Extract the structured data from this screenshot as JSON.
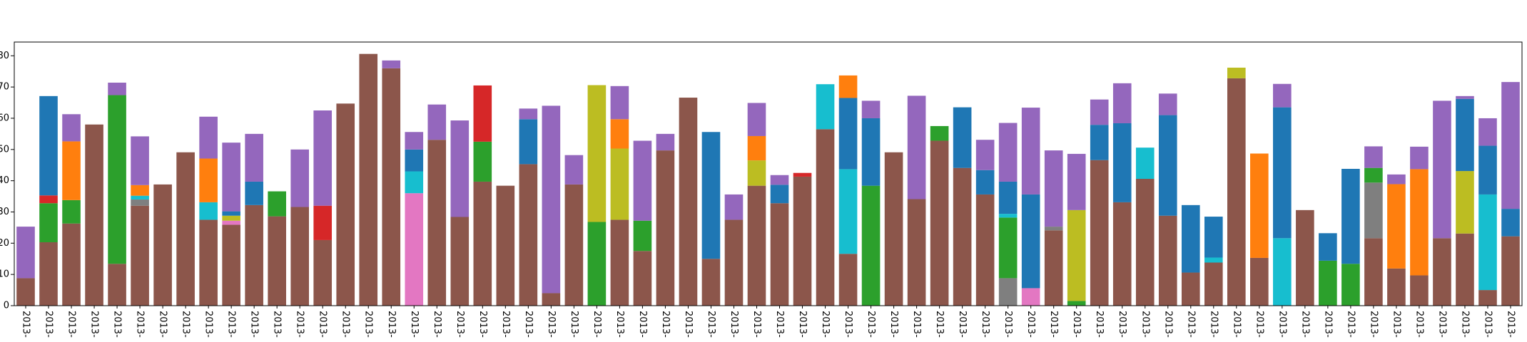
{
  "chart_data": {
    "type": "stacked-bar",
    "categories": [
      "2013-",
      "2013-",
      "2013-",
      "2013-",
      "2013-",
      "2013-",
      "2013-",
      "2013-",
      "2013-",
      "2013-",
      "2013-",
      "2013-",
      "2013-",
      "2013-",
      "2013-",
      "2013-",
      "2013-",
      "2013-",
      "2013-",
      "2013-",
      "2013-",
      "2013-",
      "2013-",
      "2013-",
      "2013-",
      "2013-",
      "2013-",
      "2013-",
      "2013-",
      "2013-",
      "2013-",
      "2013-",
      "2013-",
      "2013-",
      "2013-",
      "2013-",
      "2013-",
      "2013-",
      "2013-",
      "2013-",
      "2013-",
      "2013-",
      "2013-",
      "2013-",
      "2013-",
      "2013-",
      "2013-",
      "2013-",
      "2013-",
      "2013-",
      "2013-",
      "2013-",
      "2013-",
      "2013-",
      "2013-",
      "2013-",
      "2013-",
      "2013-",
      "2013-",
      "2013-",
      "2013-",
      "2013-",
      "2013-",
      "2013-",
      "2013-",
      "2013-"
    ],
    "ylim": [
      0,
      84.4
    ],
    "yticks": [
      0,
      10,
      20,
      30,
      40,
      50,
      60,
      70,
      80
    ],
    "series": [
      {
        "color": "#8c564b",
        "values": [
          8.8,
          20.3,
          26.3,
          58,
          13.4,
          32,
          38.8,
          49.1,
          27.5,
          25.9,
          32.2,
          28.6,
          31.6,
          21,
          64.7,
          80.6,
          76,
          0,
          53.1,
          28.4,
          39.7,
          38.4,
          45.3,
          4,
          38.8,
          0,
          27.5,
          17.5,
          49.7,
          66.6,
          15,
          27.5,
          38.4,
          32.8,
          41.3,
          56.5,
          16.6,
          0,
          49.1,
          34.1,
          52.8,
          44.1,
          35.6,
          0,
          0,
          24.1,
          0,
          46.6,
          33.1,
          40.6,
          28.8,
          10.6,
          13.8,
          72.8,
          15.3,
          0,
          30.6,
          0,
          0,
          21.6,
          11.9,
          9.7,
          21.6,
          23.1,
          5,
          22.2
        ]
      },
      {
        "color": "#7f7f7f",
        "values": [
          0,
          0,
          0,
          0,
          0,
          2,
          0,
          0,
          0,
          0,
          0,
          0,
          0,
          0,
          0,
          0,
          0,
          0,
          0,
          0,
          0,
          0,
          0,
          0,
          0,
          0,
          0,
          0,
          0,
          0,
          0,
          0,
          0,
          0,
          0,
          0,
          0,
          0,
          0,
          0,
          0,
          0,
          0,
          8.8,
          0,
          1.2,
          0,
          0,
          0,
          0,
          0,
          0,
          0,
          0,
          0,
          0,
          0,
          0,
          0,
          17.8,
          0,
          0,
          0,
          0,
          0,
          0
        ]
      },
      {
        "color": "#e377c2",
        "values": [
          0,
          0,
          0,
          0,
          0,
          0,
          0,
          0,
          0,
          1.3,
          0,
          0,
          0,
          0,
          0,
          0,
          0,
          36,
          0,
          0,
          0,
          0,
          0,
          0,
          0,
          0,
          0,
          0,
          0,
          0,
          0,
          0,
          0,
          0,
          0,
          0,
          0,
          0,
          0,
          0,
          0,
          0,
          0,
          0,
          5.6,
          0,
          0,
          0,
          0,
          0,
          0,
          0,
          0,
          0,
          0,
          0,
          0,
          0,
          0,
          0,
          0,
          0,
          0,
          0,
          0,
          0
        ]
      },
      {
        "color": "#2ca02c",
        "values": [
          0,
          12.5,
          7.5,
          0,
          54,
          0,
          0,
          0,
          0,
          0,
          0,
          8,
          0,
          0,
          0,
          0,
          0,
          0,
          0,
          0,
          12.8,
          0,
          0,
          0,
          0,
          26.8,
          0,
          9.7,
          0,
          0,
          0,
          0,
          0,
          0,
          0,
          0,
          0,
          38.4,
          0,
          0,
          4.7,
          0,
          0,
          19.4,
          0,
          0,
          1.5,
          0,
          0,
          0,
          0,
          0,
          0,
          0,
          0,
          0,
          0,
          14.4,
          13.4,
          4.7,
          0,
          0,
          0,
          0,
          0,
          0
        ]
      },
      {
        "color": "#d62728",
        "values": [
          0,
          2.5,
          0,
          0,
          0,
          0,
          0,
          0,
          0,
          0,
          0,
          0,
          0,
          11,
          0,
          0,
          0,
          0,
          0,
          0,
          18,
          0,
          0,
          0,
          0,
          0,
          0,
          0,
          0,
          0,
          0,
          0,
          0,
          0,
          1.2,
          0,
          0,
          0,
          0,
          0,
          0,
          0,
          0,
          0,
          0,
          0,
          0,
          0,
          0,
          0,
          0,
          0,
          0,
          0,
          0,
          0,
          0,
          0,
          0,
          0,
          0,
          0,
          0,
          0,
          0,
          0
        ]
      },
      {
        "color": "#bcbd22",
        "values": [
          0,
          0,
          0,
          0,
          0,
          0,
          0,
          0,
          0,
          1.6,
          0,
          0,
          0,
          0,
          0,
          0,
          0,
          0,
          0,
          0,
          0,
          0,
          0,
          0,
          0,
          43.8,
          22.8,
          0,
          0,
          0,
          0,
          0,
          8.1,
          0,
          0,
          0,
          0,
          0,
          0,
          0,
          0,
          0,
          0,
          0,
          0,
          0,
          29.1,
          0,
          0,
          0,
          0,
          0,
          0,
          3.4,
          0,
          0,
          0,
          0,
          0,
          0,
          0,
          0,
          0,
          20,
          0,
          0
        ]
      },
      {
        "color": "#17becf",
        "values": [
          0,
          0,
          0,
          0,
          0,
          1.2,
          0,
          0,
          5.6,
          0,
          0,
          0,
          0,
          0,
          0,
          0,
          0,
          7,
          0,
          0,
          0,
          0,
          0,
          0,
          0,
          0,
          0,
          0,
          0,
          0,
          0,
          0,
          0,
          0,
          0,
          14.4,
          27.1,
          0,
          0,
          0,
          0,
          0,
          0,
          1.2,
          0,
          0,
          0,
          0,
          0,
          10,
          0,
          0,
          1.6,
          0,
          0,
          21.6,
          0,
          0,
          0,
          0,
          0,
          0,
          0,
          0,
          30.6,
          0
        ]
      },
      {
        "color": "#1f77b4",
        "values": [
          0,
          31.8,
          0,
          0,
          0,
          0,
          0,
          0,
          0,
          1.4,
          7.5,
          0,
          0,
          0,
          0,
          0,
          0,
          7,
          0,
          0,
          0,
          0,
          14.4,
          0,
          0,
          0,
          0,
          0,
          0,
          0,
          40.6,
          0,
          0,
          5.9,
          0,
          0,
          22.8,
          21.6,
          0,
          0,
          0,
          19.4,
          7.8,
          10.3,
          30,
          0,
          0,
          11.3,
          25.3,
          0,
          32.2,
          21.6,
          13.1,
          0,
          0,
          41.9,
          0,
          8.8,
          30.4,
          0,
          0,
          0,
          0,
          23.1,
          15.6,
          8.8
        ]
      },
      {
        "color": "#ff7f0e",
        "values": [
          0,
          0,
          18.8,
          0,
          0,
          3.4,
          0,
          0,
          14,
          0,
          0,
          0,
          0,
          0,
          0,
          0,
          0,
          0,
          0,
          0,
          0,
          0,
          0,
          0,
          0,
          0,
          9.4,
          0,
          0,
          0,
          0,
          0,
          7.8,
          0,
          0,
          0,
          7.2,
          0,
          0,
          0,
          0,
          0,
          0,
          0,
          0,
          0,
          0,
          0,
          0,
          0,
          0,
          0,
          0,
          0,
          33.4,
          0,
          0,
          0,
          0,
          0,
          27,
          34,
          0,
          0,
          0,
          0
        ]
      },
      {
        "color": "#9467bd",
        "values": [
          16.5,
          0,
          8.7,
          0,
          4,
          15.6,
          0,
          0,
          13.4,
          22,
          15.3,
          0,
          18.4,
          30.5,
          0,
          0,
          2.5,
          5.6,
          11.3,
          30.9,
          0,
          0,
          3.4,
          60,
          9.4,
          0,
          10.6,
          25.6,
          5.3,
          0,
          0,
          8.1,
          10.6,
          3.1,
          0,
          0,
          0,
          5.6,
          0,
          33.1,
          0,
          0,
          9.7,
          18.8,
          27.8,
          24.4,
          18,
          8.1,
          12.8,
          0,
          6.9,
          0,
          0,
          0,
          0,
          7.5,
          0,
          0,
          0,
          6.9,
          3.1,
          7.2,
          44,
          0.9,
          8.8,
          40.6
        ]
      }
    ]
  }
}
